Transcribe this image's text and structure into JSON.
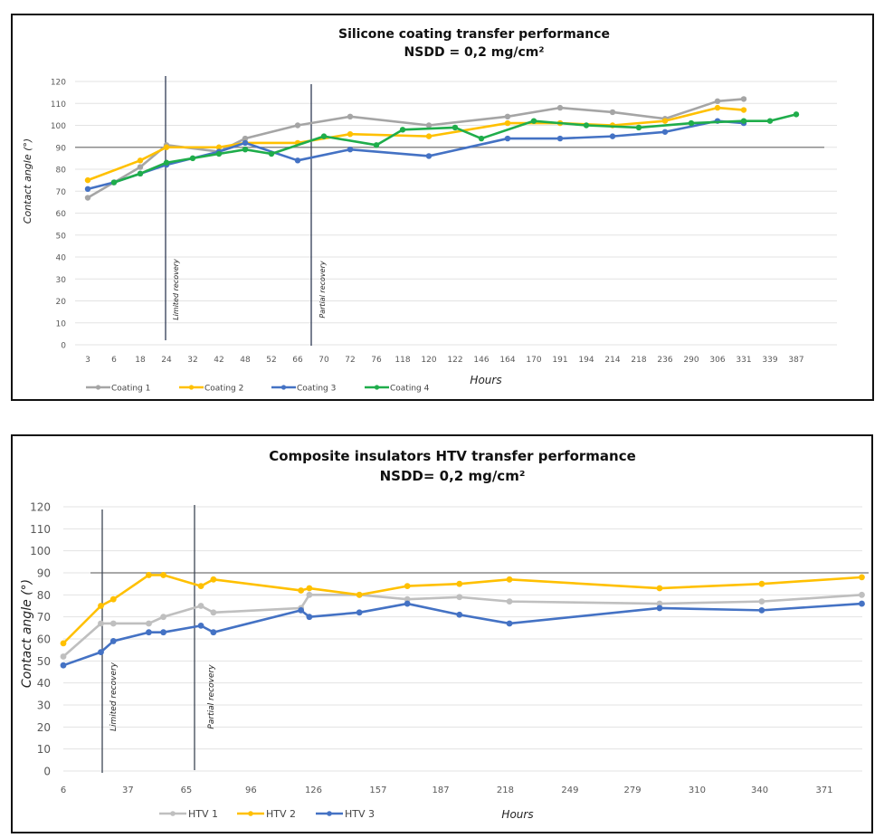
{
  "chart_data": [
    {
      "type": "line",
      "title": "Silicone coating transfer performance",
      "subtitle": "NSDD = 0,2 mg/cm²",
      "xlabel": "Hours",
      "ylabel": "Contact angle  (°)",
      "x_axis_type": "category",
      "categories": [
        "3",
        "6",
        "18",
        "24",
        "32",
        "42",
        "48",
        "52",
        "66",
        "70",
        "72",
        "76",
        "118",
        "120",
        "122",
        "146",
        "164",
        "170",
        "191",
        "194",
        "214",
        "218",
        "236",
        "290",
        "306",
        "331",
        "339",
        "387"
      ],
      "yticks": [
        "0",
        "10",
        "20",
        "30",
        "40",
        "50",
        "60",
        "70",
        "80",
        "90",
        "100",
        "110",
        "120"
      ],
      "ylim": [
        0,
        120
      ],
      "grid": true,
      "reference_line": 90,
      "annotations": [
        {
          "text": "Limited recovery",
          "at_category": "24"
        },
        {
          "text": "Partial recovery",
          "at_category": "70"
        }
      ],
      "legend_position": "bottom-left",
      "series": [
        {
          "name": "Coating 1",
          "color": "#A5A5A5",
          "points": [
            [
              "3",
              67
            ],
            [
              "18",
              81
            ],
            [
              "24",
              91
            ],
            [
              "42",
              88
            ],
            [
              "48",
              94
            ],
            [
              "66",
              100
            ],
            [
              "72",
              104
            ],
            [
              "120",
              100
            ],
            [
              "164",
              104
            ],
            [
              "191",
              108
            ],
            [
              "214",
              106
            ],
            [
              "236",
              103
            ],
            [
              "306",
              111
            ],
            [
              "331",
              112
            ]
          ]
        },
        {
          "name": "Coating 2",
          "color": "#FFC000",
          "points": [
            [
              "3",
              75
            ],
            [
              "18",
              84
            ],
            [
              "24",
              90
            ],
            [
              "42",
              90
            ],
            [
              "48",
              92
            ],
            [
              "66",
              92
            ],
            [
              "72",
              96
            ],
            [
              "120",
              95
            ],
            [
              "164",
              101
            ],
            [
              "191",
              101
            ],
            [
              "214",
              100
            ],
            [
              "236",
              102
            ],
            [
              "306",
              108
            ],
            [
              "331",
              107
            ]
          ]
        },
        {
          "name": "Coating 3",
          "color": "#4472C4",
          "points": [
            [
              "3",
              71
            ],
            [
              "6",
              74
            ],
            [
              "18",
              78
            ],
            [
              "24",
              82
            ],
            [
              "42",
              88
            ],
            [
              "48",
              92
            ],
            [
              "66",
              84
            ],
            [
              "72",
              89
            ],
            [
              "120",
              86
            ],
            [
              "164",
              94
            ],
            [
              "191",
              94
            ],
            [
              "214",
              95
            ],
            [
              "236",
              97
            ],
            [
              "306",
              102
            ],
            [
              "331",
              101
            ]
          ]
        },
        {
          "name": "Coating 4",
          "color": "#1FAD4B",
          "points": [
            [
              "6",
              74
            ],
            [
              "18",
              78
            ],
            [
              "24",
              83
            ],
            [
              "32",
              85
            ],
            [
              "42",
              87
            ],
            [
              "48",
              89
            ],
            [
              "52",
              87
            ],
            [
              "70",
              95
            ],
            [
              "76",
              91
            ],
            [
              "118",
              98
            ],
            [
              "122",
              99
            ],
            [
              "146",
              94
            ],
            [
              "170",
              102
            ],
            [
              "194",
              100
            ],
            [
              "218",
              99
            ],
            [
              "290",
              101
            ],
            [
              "331",
              102
            ],
            [
              "339",
              102
            ],
            [
              "387",
              105
            ]
          ]
        }
      ]
    },
    {
      "type": "line",
      "title": "Composite insulators HTV transfer performance",
      "subtitle": "NSDD= 0,2 mg/cm²",
      "xlabel": "Hours",
      "ylabel": "Contact angle (°)",
      "x_axis_type": "linear",
      "xticks": [
        "6",
        "37",
        "65",
        "96",
        "126",
        "157",
        "187",
        "218",
        "249",
        "279",
        "310",
        "340",
        "371"
      ],
      "xlim": [
        6,
        371
      ],
      "yticks": [
        "0",
        "10",
        "20",
        "30",
        "40",
        "50",
        "60",
        "70",
        "80",
        "90",
        "100",
        "110",
        "120"
      ],
      "ylim": [
        0,
        120
      ],
      "grid": true,
      "reference_line": 90,
      "annotations": [
        {
          "text": "Limited recovery",
          "at_x": 24
        },
        {
          "text": "Partial recovery",
          "at_x": 68
        }
      ],
      "legend_position": "bottom-center",
      "series": [
        {
          "name": "HTV 1",
          "color": "#BFBFBF",
          "points": [
            [
              6,
              52
            ],
            [
              24,
              67
            ],
            [
              30,
              67
            ],
            [
              47,
              67
            ],
            [
              54,
              70
            ],
            [
              72,
              75
            ],
            [
              78,
              72
            ],
            [
              120,
              74
            ],
            [
              124,
              80
            ],
            [
              148,
              80
            ],
            [
              171,
              78
            ],
            [
              196,
              79
            ],
            [
              220,
              77
            ],
            [
              292,
              76
            ],
            [
              341,
              77
            ],
            [
              389,
              80
            ]
          ]
        },
        {
          "name": "HTV 2",
          "color": "#FFC000",
          "points": [
            [
              6,
              58
            ],
            [
              24,
              75
            ],
            [
              30,
              78
            ],
            [
              47,
              89
            ],
            [
              54,
              89
            ],
            [
              72,
              84
            ],
            [
              78,
              87
            ],
            [
              120,
              82
            ],
            [
              124,
              83
            ],
            [
              148,
              80
            ],
            [
              171,
              84
            ],
            [
              196,
              85
            ],
            [
              220,
              87
            ],
            [
              292,
              83
            ],
            [
              341,
              85
            ],
            [
              389,
              88
            ]
          ]
        },
        {
          "name": "HTV 3",
          "color": "#4472C4",
          "points": [
            [
              6,
              48
            ],
            [
              24,
              54
            ],
            [
              30,
              59
            ],
            [
              47,
              63
            ],
            [
              54,
              63
            ],
            [
              72,
              66
            ],
            [
              78,
              63
            ],
            [
              120,
              73
            ],
            [
              124,
              70
            ],
            [
              148,
              72
            ],
            [
              171,
              76
            ],
            [
              196,
              71
            ],
            [
              220,
              67
            ],
            [
              292,
              74
            ],
            [
              341,
              73
            ],
            [
              389,
              76
            ]
          ]
        }
      ]
    }
  ]
}
